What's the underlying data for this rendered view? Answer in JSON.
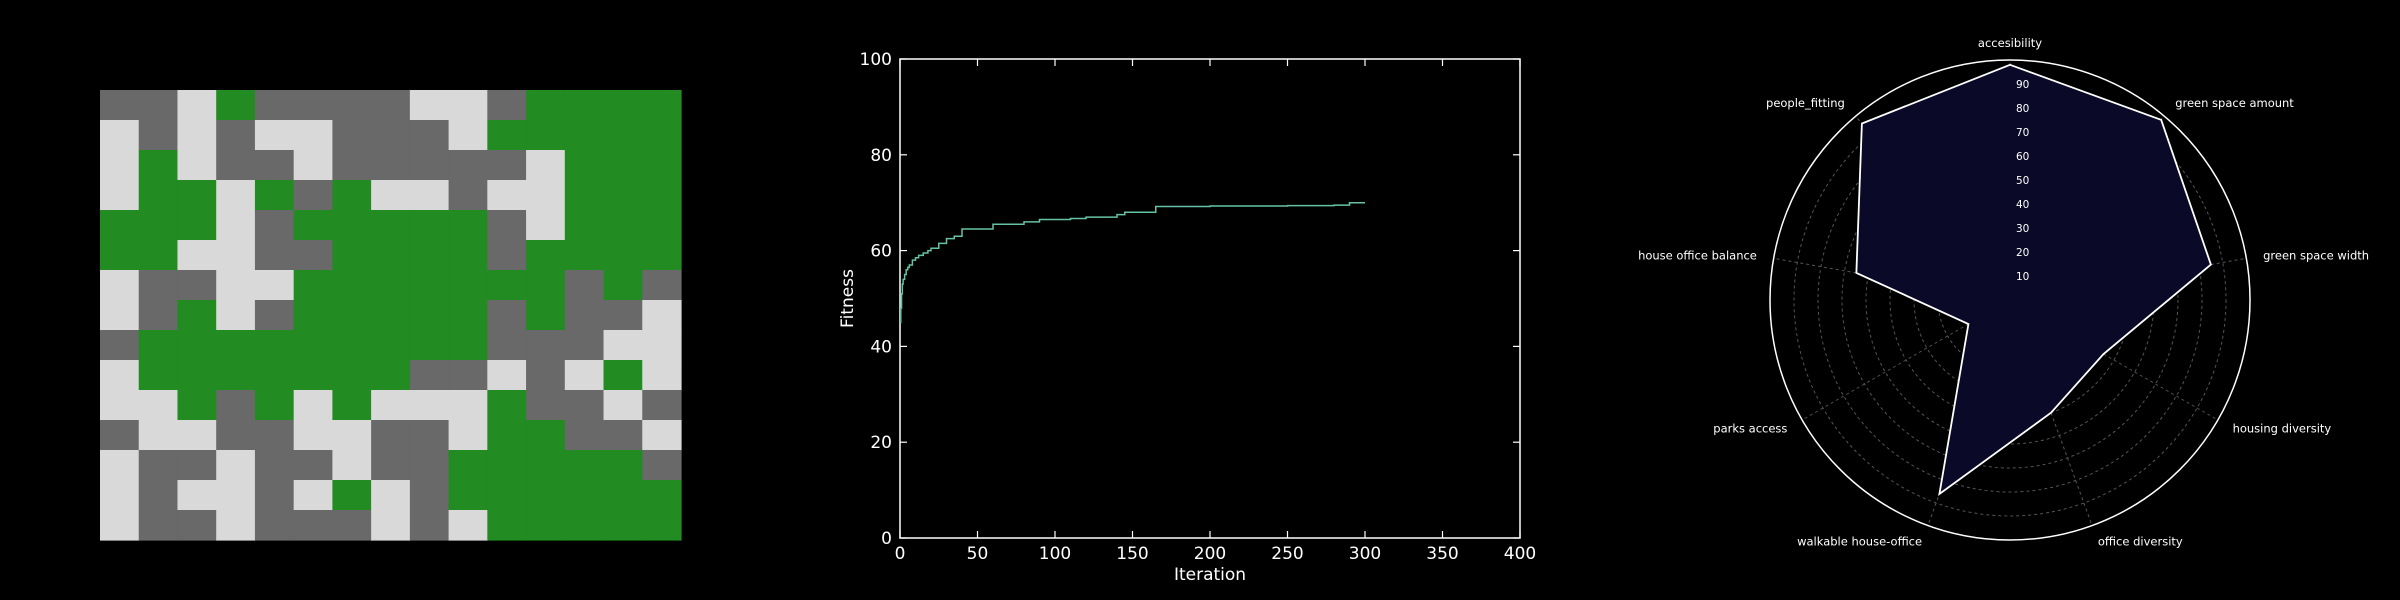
{
  "colors": {
    "background": "#000000",
    "green": "#228b22",
    "gray": "#696969",
    "light": "#d9d9d9",
    "line": "#66c2a5",
    "radar_fill": "#0a0a28",
    "radar_edge": "#ffffff",
    "axis": "#ffffff",
    "grid": "#555555"
  },
  "chart_data": [
    {
      "type": "heatmap",
      "legend": {
        "0": "light",
        "1": "gray",
        "2": "green"
      },
      "grid": [
        [
          1,
          1,
          0,
          2,
          1,
          1,
          1,
          1,
          0,
          0,
          1,
          2,
          2,
          2,
          2
        ],
        [
          0,
          1,
          0,
          1,
          0,
          0,
          1,
          1,
          1,
          0,
          2,
          2,
          2,
          2,
          2
        ],
        [
          0,
          2,
          0,
          1,
          1,
          0,
          1,
          1,
          1,
          1,
          1,
          0,
          2,
          2,
          2
        ],
        [
          0,
          2,
          2,
          0,
          2,
          1,
          2,
          0,
          0,
          1,
          0,
          0,
          2,
          2,
          2
        ],
        [
          2,
          2,
          2,
          0,
          1,
          2,
          2,
          2,
          2,
          2,
          1,
          0,
          2,
          2,
          2
        ],
        [
          2,
          2,
          0,
          0,
          1,
          1,
          2,
          2,
          2,
          2,
          1,
          2,
          2,
          2,
          2
        ],
        [
          0,
          1,
          1,
          0,
          0,
          2,
          2,
          2,
          2,
          2,
          2,
          2,
          1,
          2,
          1
        ],
        [
          0,
          1,
          2,
          0,
          1,
          2,
          2,
          2,
          2,
          2,
          1,
          2,
          1,
          1,
          0
        ],
        [
          1,
          2,
          2,
          2,
          2,
          2,
          2,
          2,
          2,
          2,
          1,
          1,
          1,
          0,
          0
        ],
        [
          0,
          2,
          2,
          2,
          2,
          2,
          2,
          2,
          1,
          1,
          0,
          1,
          0,
          2,
          0
        ],
        [
          0,
          0,
          2,
          1,
          2,
          0,
          2,
          0,
          0,
          0,
          2,
          1,
          1,
          0,
          1
        ],
        [
          1,
          0,
          0,
          1,
          1,
          0,
          0,
          1,
          1,
          0,
          2,
          2,
          1,
          1,
          0
        ],
        [
          0,
          1,
          1,
          0,
          1,
          1,
          0,
          1,
          1,
          2,
          2,
          2,
          2,
          2,
          1
        ],
        [
          0,
          1,
          0,
          0,
          1,
          0,
          2,
          0,
          1,
          2,
          2,
          2,
          2,
          2,
          2
        ],
        [
          0,
          1,
          1,
          0,
          1,
          1,
          1,
          0,
          1,
          0,
          2,
          2,
          2,
          2,
          2
        ]
      ]
    },
    {
      "type": "line",
      "title": "",
      "xlabel": "Iteration",
      "ylabel": "Fitness",
      "xlim": [
        0,
        400
      ],
      "ylim": [
        0,
        100
      ],
      "xticks": [
        0,
        50,
        100,
        150,
        200,
        250,
        300,
        350,
        400
      ],
      "yticks": [
        0,
        20,
        40,
        60,
        80,
        100
      ],
      "grid": false,
      "series": [
        {
          "x": [
            0,
            0.5,
            1,
            1.5,
            2,
            3,
            4,
            5,
            6,
            8,
            10,
            12,
            15,
            18,
            20,
            25,
            30,
            35,
            40,
            50,
            60,
            70,
            80,
            90,
            100,
            110,
            120,
            130,
            140,
            145,
            150,
            160,
            165,
            170,
            180,
            200,
            250,
            280,
            290,
            300
          ],
          "y": [
            45,
            48,
            51,
            53,
            54,
            55,
            56,
            56.5,
            57,
            58,
            58.5,
            59,
            59.5,
            60,
            60.5,
            61.5,
            62.5,
            63,
            64.5,
            64.5,
            65.5,
            65.5,
            66,
            66.5,
            66.5,
            66.7,
            67,
            67,
            67.5,
            68,
            68,
            68,
            69.2,
            69.2,
            69.2,
            69.3,
            69.4,
            69.5,
            70,
            70
          ]
        }
      ]
    },
    {
      "type": "radar",
      "categories": [
        "accesibility",
        "green space amount",
        "green space width",
        "housing diversity",
        "office diversity",
        "walkable house-office",
        "parks access",
        "house office balance",
        "people_fitting"
      ],
      "values": [
        98,
        98,
        85,
        45,
        50,
        86,
        20,
        65,
        96
      ],
      "rlim": [
        0,
        100
      ],
      "rticks": [
        10,
        20,
        30,
        40,
        50,
        60,
        70,
        80,
        90
      ]
    }
  ]
}
